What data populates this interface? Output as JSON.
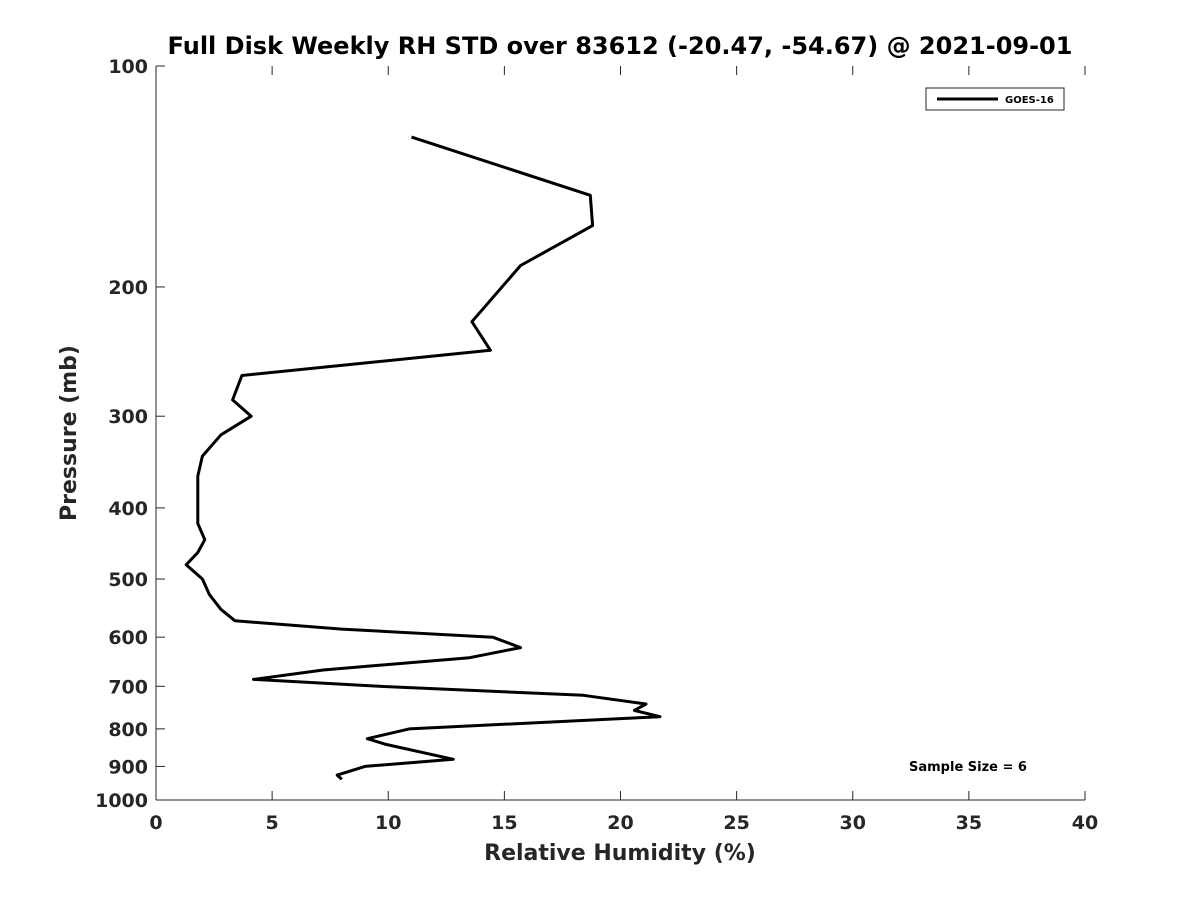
{
  "chart_data": {
    "type": "line",
    "title": "Full Disk Weekly RH STD over 83612 (-20.47, -54.67) @ 2021-09-01",
    "xlabel": "Relative Humidity (%)",
    "ylabel": "Pressure (mb)",
    "xlim": [
      0,
      40
    ],
    "ylim": [
      100,
      1000
    ],
    "yscale": "log",
    "yreversed": true,
    "grid": false,
    "x_ticks": [
      0,
      5,
      10,
      15,
      20,
      25,
      30,
      35,
      40
    ],
    "y_ticks": [
      100,
      200,
      300,
      400,
      500,
      600,
      700,
      800,
      900,
      1000
    ],
    "legend": {
      "position": "top-right",
      "entries": [
        "GOES-16"
      ]
    },
    "annotation": "Sample Size = 6",
    "series": [
      {
        "name": "GOES-16",
        "points": [
          {
            "x": 11.0,
            "y": 125
          },
          {
            "x": 18.7,
            "y": 150
          },
          {
            "x": 18.8,
            "y": 165
          },
          {
            "x": 15.7,
            "y": 187
          },
          {
            "x": 13.6,
            "y": 223
          },
          {
            "x": 14.4,
            "y": 244
          },
          {
            "x": 3.7,
            "y": 264
          },
          {
            "x": 3.3,
            "y": 285
          },
          {
            "x": 4.1,
            "y": 300
          },
          {
            "x": 2.8,
            "y": 318
          },
          {
            "x": 2.0,
            "y": 340
          },
          {
            "x": 1.8,
            "y": 362
          },
          {
            "x": 1.8,
            "y": 385
          },
          {
            "x": 1.8,
            "y": 400
          },
          {
            "x": 1.8,
            "y": 420
          },
          {
            "x": 2.1,
            "y": 442
          },
          {
            "x": 1.8,
            "y": 460
          },
          {
            "x": 1.3,
            "y": 478
          },
          {
            "x": 2.0,
            "y": 500
          },
          {
            "x": 2.3,
            "y": 525
          },
          {
            "x": 2.8,
            "y": 550
          },
          {
            "x": 3.4,
            "y": 570
          },
          {
            "x": 8.0,
            "y": 585
          },
          {
            "x": 14.5,
            "y": 600
          },
          {
            "x": 15.7,
            "y": 620
          },
          {
            "x": 13.5,
            "y": 640
          },
          {
            "x": 7.2,
            "y": 665
          },
          {
            "x": 4.2,
            "y": 685
          },
          {
            "x": 9.6,
            "y": 700
          },
          {
            "x": 18.4,
            "y": 720
          },
          {
            "x": 21.1,
            "y": 740
          },
          {
            "x": 20.6,
            "y": 755
          },
          {
            "x": 21.7,
            "y": 770
          },
          {
            "x": 10.9,
            "y": 800
          },
          {
            "x": 9.1,
            "y": 825
          },
          {
            "x": 9.9,
            "y": 840
          },
          {
            "x": 12.8,
            "y": 880
          },
          {
            "x": 9.0,
            "y": 900
          },
          {
            "x": 7.8,
            "y": 925
          },
          {
            "x": 8.0,
            "y": 937
          }
        ]
      }
    ]
  }
}
